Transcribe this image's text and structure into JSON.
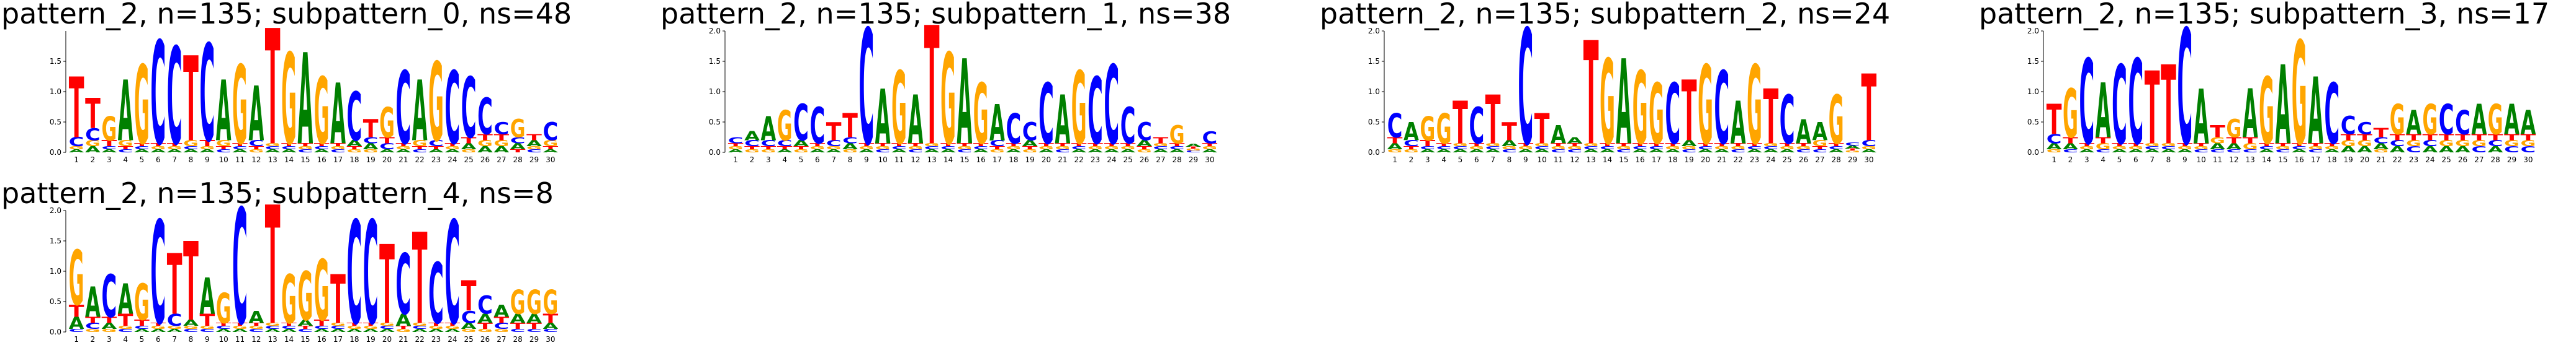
{
  "chart_data": [
    {
      "type": "logo",
      "title": "pattern_2, n=135; subpattern_0, ns=48",
      "categories": [
        1,
        2,
        3,
        4,
        5,
        6,
        7,
        8,
        9,
        10,
        11,
        12,
        13,
        14,
        15,
        16,
        17,
        18,
        19,
        20,
        21,
        22,
        23,
        24,
        25,
        26,
        27,
        28,
        29,
        30
      ],
      "ylim": [
        0,
        2
      ],
      "yticks": [
        {
          "value": 0,
          "label": "0.0"
        },
        {
          "value": 0.5,
          "label": "0.5"
        },
        {
          "value": 1,
          "label": "1.0"
        },
        {
          "value": 1.5,
          "label": "1.5"
        }
      ],
      "series": [
        {
          "name": "A",
          "color": "#008000",
          "values": [
            0.05,
            0.1,
            0.05,
            1.0,
            0.05,
            0.05,
            0.05,
            0.05,
            0.05,
            1.0,
            0.05,
            0.9,
            0.05,
            0.05,
            1.5,
            0.05,
            1.0,
            0.1,
            0.1,
            0.05,
            0.05,
            1.0,
            0.05,
            0.05,
            0.1,
            0.1,
            0.1,
            0.1,
            0.1,
            0.05
          ]
        },
        {
          "name": "C",
          "color": "#0000ff",
          "values": [
            0.15,
            0.2,
            0.05,
            0.05,
            0.05,
            1.7,
            1.6,
            0.05,
            1.6,
            0.05,
            0.05,
            0.1,
            0.05,
            0.05,
            0.05,
            0.05,
            0.05,
            0.8,
            0.1,
            0.1,
            1.2,
            0.05,
            0.1,
            1.2,
            1.0,
            0.6,
            0.2,
            0.1,
            0.05,
            0.3
          ]
        },
        {
          "name": "G",
          "color": "#ffa500",
          "values": [
            0.05,
            0.1,
            0.4,
            0.1,
            1.3,
            0.05,
            0.05,
            0.1,
            0.05,
            0.1,
            1.3,
            0.05,
            0.05,
            1.5,
            0.05,
            1.1,
            0.05,
            0.05,
            0.05,
            0.5,
            0.05,
            0.1,
            1.3,
            0.05,
            0.05,
            0.1,
            0.1,
            0.3,
            0.05,
            0.1
          ]
        },
        {
          "name": "T",
          "color": "#ff0000",
          "values": [
            1.0,
            0.5,
            0.1,
            0.05,
            0.05,
            0.05,
            0.05,
            1.4,
            0.1,
            0.05,
            0.05,
            0.05,
            1.9,
            0.05,
            0.05,
            0.05,
            0.05,
            0.05,
            0.3,
            0.1,
            0.05,
            0.05,
            0.05,
            0.05,
            0.1,
            0.1,
            0.1,
            0.05,
            0.1,
            0.05
          ]
        }
      ]
    },
    {
      "type": "logo",
      "title": "pattern_2, n=135; subpattern_1, ns=38",
      "categories": [
        1,
        2,
        3,
        4,
        5,
        6,
        7,
        8,
        9,
        10,
        11,
        12,
        13,
        14,
        15,
        16,
        17,
        18,
        19,
        20,
        21,
        22,
        23,
        24,
        25,
        26,
        27,
        28,
        29,
        30
      ],
      "ylim": [
        0,
        2
      ],
      "yticks": [
        {
          "value": 0,
          "label": "0.0"
        },
        {
          "value": 0.5,
          "label": "0.5"
        },
        {
          "value": 1,
          "label": "1.0"
        },
        {
          "value": 1.5,
          "label": "1.5"
        },
        {
          "value": 2,
          "label": "2.0"
        }
      ],
      "series": [
        {
          "name": "A",
          "color": "#008000",
          "values": [
            0.05,
            0.15,
            0.4,
            0.05,
            0.1,
            0.05,
            0.05,
            0.1,
            0.05,
            0.9,
            0.05,
            0.8,
            0.05,
            0.05,
            1.4,
            0.05,
            0.6,
            0.05,
            0.1,
            0.05,
            0.8,
            0.05,
            0.05,
            0.05,
            0.05,
            0.1,
            0.05,
            0.05,
            0.05,
            0.05
          ]
        },
        {
          "name": "C",
          "color": "#0000ff",
          "values": [
            0.1,
            0.1,
            0.1,
            0.1,
            0.6,
            0.6,
            0.1,
            0.1,
            1.9,
            0.05,
            0.05,
            0.05,
            0.05,
            0.05,
            0.05,
            0.05,
            0.1,
            0.5,
            0.3,
            1.0,
            0.05,
            0.05,
            1.1,
            1.3,
            0.6,
            0.3,
            0.05,
            0.05,
            0.03,
            0.2
          ]
        },
        {
          "name": "G",
          "color": "#ffa500",
          "values": [
            0.05,
            0.05,
            0.05,
            0.5,
            0.05,
            0.05,
            0.05,
            0.05,
            0.05,
            0.05,
            1.2,
            0.05,
            0.05,
            1.5,
            0.05,
            1.0,
            0.05,
            0.05,
            0.05,
            0.05,
            0.05,
            1.2,
            0.05,
            0.05,
            0.05,
            0.05,
            0.05,
            0.3,
            0.03,
            0.05
          ]
        },
        {
          "name": "T",
          "color": "#ff0000",
          "values": [
            0.05,
            0.05,
            0.05,
            0.05,
            0.05,
            0.05,
            0.3,
            0.4,
            0.05,
            0.05,
            0.05,
            0.05,
            1.95,
            0.05,
            0.05,
            0.05,
            0.05,
            0.05,
            0.05,
            0.05,
            0.05,
            0.05,
            0.05,
            0.05,
            0.05,
            0.05,
            0.1,
            0.05,
            0.03,
            0.05
          ]
        }
      ]
    },
    {
      "type": "logo",
      "title": "pattern_2, n=135; subpattern_2, ns=24",
      "categories": [
        1,
        2,
        3,
        4,
        5,
        6,
        7,
        8,
        9,
        10,
        11,
        12,
        13,
        14,
        15,
        16,
        17,
        18,
        19,
        20,
        21,
        22,
        23,
        24,
        25,
        26,
        27,
        28,
        29,
        30
      ],
      "ylim": [
        0,
        2
      ],
      "yticks": [
        {
          "value": 0,
          "label": "0.0"
        },
        {
          "value": 0.5,
          "label": "0.5"
        },
        {
          "value": 1,
          "label": "1.0"
        },
        {
          "value": 1.5,
          "label": "1.5"
        },
        {
          "value": 2,
          "label": "2.0"
        }
      ],
      "series": [
        {
          "name": "A",
          "color": "#008000",
          "values": [
            0.1,
            0.3,
            0.05,
            0.05,
            0.05,
            0.05,
            0.05,
            0.1,
            0.05,
            0.05,
            0.3,
            0.1,
            0.05,
            0.05,
            1.4,
            0.05,
            0.05,
            0.05,
            0.1,
            0.05,
            0.05,
            0.7,
            0.05,
            0.05,
            0.05,
            0.4,
            0.3,
            0.05,
            0.05,
            0.05
          ]
        },
        {
          "name": "C",
          "color": "#0000ff",
          "values": [
            0.4,
            0.1,
            0.05,
            0.05,
            0.05,
            0.6,
            0.05,
            0.05,
            1.9,
            0.05,
            0.05,
            0.05,
            0.05,
            0.05,
            0.05,
            0.05,
            0.05,
            1.0,
            0.05,
            0.05,
            1.2,
            0.05,
            0.05,
            0.05,
            0.8,
            0.05,
            0.05,
            0.05,
            0.05,
            0.1
          ]
        },
        {
          "name": "G",
          "color": "#ffa500",
          "values": [
            0.05,
            0.05,
            0.4,
            0.5,
            0.05,
            0.05,
            0.05,
            0.05,
            0.05,
            0.05,
            0.05,
            0.05,
            0.05,
            1.4,
            0.05,
            1.2,
            1.0,
            0.05,
            0.05,
            1.3,
            0.05,
            0.05,
            1.3,
            0.05,
            0.05,
            0.05,
            0.1,
            0.8,
            0.03,
            0.05
          ]
        },
        {
          "name": "T",
          "color": "#ff0000",
          "values": [
            0.1,
            0.05,
            0.1,
            0.05,
            0.7,
            0.05,
            0.8,
            0.3,
            0.05,
            0.5,
            0.05,
            0.05,
            1.7,
            0.05,
            0.05,
            0.05,
            0.05,
            0.05,
            1.0,
            0.05,
            0.05,
            0.05,
            0.05,
            0.9,
            0.05,
            0.05,
            0.05,
            0.05,
            0.03,
            1.1
          ]
        }
      ]
    },
    {
      "type": "logo",
      "title": "pattern_2, n=135; subpattern_3, ns=17",
      "categories": [
        1,
        2,
        3,
        4,
        5,
        6,
        7,
        8,
        9,
        10,
        11,
        12,
        13,
        14,
        15,
        16,
        17,
        18,
        19,
        20,
        21,
        22,
        23,
        24,
        25,
        26,
        27,
        28,
        29,
        30
      ],
      "ylim": [
        0,
        2
      ],
      "yticks": [
        {
          "value": 0,
          "label": "0.0"
        },
        {
          "value": 0.5,
          "label": "0.5"
        },
        {
          "value": 1,
          "label": "1.0"
        },
        {
          "value": 1.5,
          "label": "1.5"
        },
        {
          "value": 2,
          "label": "2.0"
        }
      ],
      "series": [
        {
          "name": "A",
          "color": "#008000",
          "values": [
            0.1,
            0.1,
            0.05,
            0.9,
            0.05,
            0.05,
            0.05,
            0.05,
            0.05,
            0.9,
            0.1,
            0.1,
            0.8,
            0.05,
            1.3,
            0.05,
            1.1,
            0.05,
            0.1,
            0.1,
            0.1,
            0.1,
            0.4,
            0.1,
            0.1,
            0.1,
            0.5,
            0.1,
            0.5,
            0.4
          ]
        },
        {
          "name": "C",
          "color": "#0000ff",
          "values": [
            0.15,
            0.05,
            1.4,
            0.05,
            1.3,
            1.4,
            0.05,
            0.05,
            1.9,
            0.05,
            0.05,
            0.05,
            0.05,
            0.05,
            0.05,
            0.05,
            0.05,
            1.0,
            0.3,
            0.2,
            0.1,
            0.1,
            0.1,
            0.1,
            0.5,
            0.4,
            0.1,
            0.1,
            0.1,
            0.1
          ]
        },
        {
          "name": "G",
          "color": "#ffa500",
          "values": [
            0.05,
            0.8,
            0.05,
            0.1,
            0.05,
            0.05,
            0.05,
            0.05,
            0.05,
            0.05,
            0.1,
            0.3,
            0.1,
            1.1,
            0.05,
            1.7,
            0.05,
            0.05,
            0.1,
            0.1,
            0.05,
            0.5,
            0.1,
            0.5,
            0.1,
            0.1,
            0.1,
            0.5,
            0.1,
            0.1
          ]
        },
        {
          "name": "T",
          "color": "#ff0000",
          "values": [
            0.5,
            0.1,
            0.05,
            0.1,
            0.05,
            0.05,
            1.2,
            1.3,
            0.05,
            0.05,
            0.2,
            0.1,
            0.1,
            0.05,
            0.05,
            0.05,
            0.05,
            0.05,
            0.1,
            0.1,
            0.15,
            0.1,
            0.1,
            0.1,
            0.1,
            0.1,
            0.1,
            0.1,
            0.1,
            0.1
          ]
        }
      ]
    },
    {
      "type": "logo",
      "title": "pattern_2, n=135; subpattern_4, ns=8",
      "categories": [
        1,
        2,
        3,
        4,
        5,
        6,
        7,
        8,
        9,
        10,
        11,
        12,
        13,
        14,
        15,
        16,
        17,
        18,
        19,
        20,
        21,
        22,
        23,
        24,
        25,
        26,
        27,
        28,
        29,
        30
      ],
      "ylim": [
        0,
        2
      ],
      "yticks": [
        {
          "value": 0,
          "label": "0.0"
        },
        {
          "value": 0.5,
          "label": "0.5"
        },
        {
          "value": 1,
          "label": "1.0"
        },
        {
          "value": 1.5,
          "label": "1.5"
        },
        {
          "value": 2,
          "label": "2.0"
        }
      ],
      "series": [
        {
          "name": "A",
          "color": "#008000",
          "values": [
            0.2,
            0.5,
            0.1,
            0.5,
            0.05,
            0.05,
            0.05,
            0.1,
            0.6,
            0.05,
            0.05,
            0.2,
            0.05,
            0.05,
            0.1,
            0.05,
            0.05,
            0.05,
            0.05,
            0.05,
            0.2,
            0.05,
            0.05,
            0.05,
            0.1,
            0.15,
            0.2,
            0.15,
            0.15,
            0.1
          ]
        },
        {
          "name": "C",
          "color": "#0000ff",
          "values": [
            0.05,
            0.1,
            0.7,
            0.05,
            0.05,
            1.7,
            0.2,
            0.05,
            0.05,
            0.05,
            1.9,
            0.05,
            0.05,
            0.05,
            0.05,
            0.05,
            0.05,
            1.7,
            1.7,
            0.05,
            1.0,
            0.05,
            1.0,
            1.7,
            0.2,
            0.3,
            0.1,
            0.05,
            0.05,
            0.05
          ]
        },
        {
          "name": "G",
          "color": "#ffa500",
          "values": [
            0.9,
            0.05,
            0.05,
            0.05,
            0.6,
            0.05,
            0.05,
            0.05,
            0.05,
            0.5,
            0.05,
            0.05,
            0.05,
            0.8,
            0.8,
            1.0,
            0.05,
            0.05,
            0.05,
            0.05,
            0.05,
            0.05,
            0.05,
            0.05,
            0.05,
            0.05,
            0.05,
            0.4,
            0.4,
            0.4
          ]
        },
        {
          "name": "T",
          "color": "#ff0000",
          "values": [
            0.2,
            0.1,
            0.1,
            0.2,
            0.1,
            0.05,
            1.0,
            1.3,
            0.2,
            0.05,
            0.05,
            0.05,
            1.95,
            0.05,
            0.05,
            0.1,
            0.8,
            0.05,
            0.05,
            1.3,
            0.05,
            1.5,
            0.05,
            0.05,
            0.5,
            0.1,
            0.1,
            0.1,
            0.1,
            0.15
          ]
        }
      ]
    }
  ]
}
